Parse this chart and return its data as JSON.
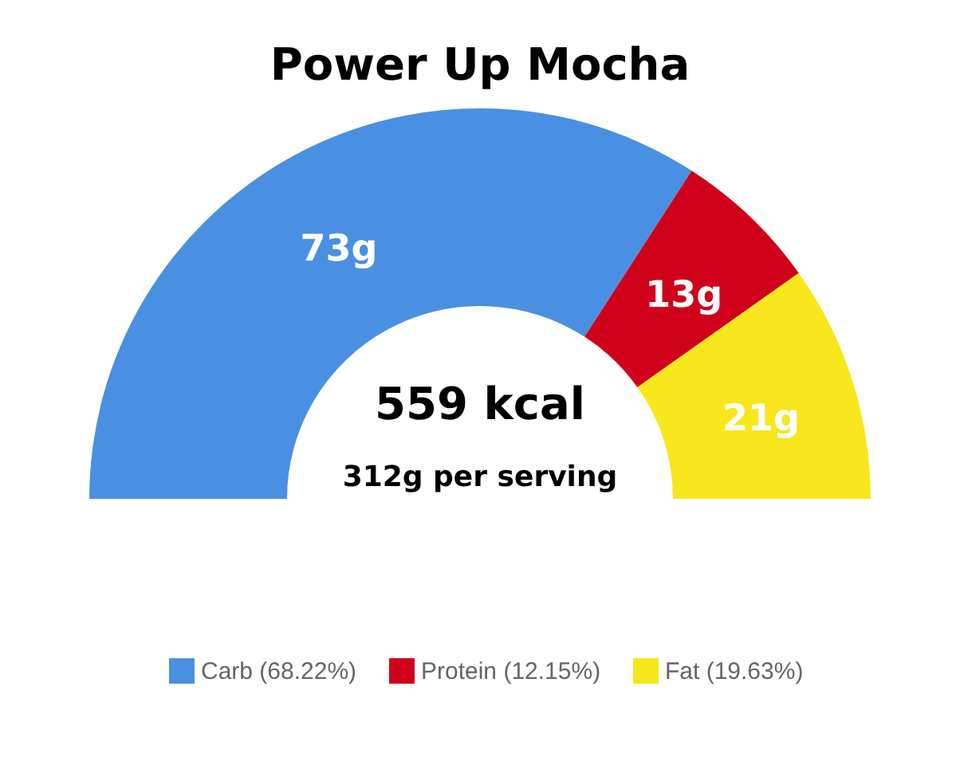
{
  "chart_data": {
    "type": "donut",
    "title": "Power Up Mocha",
    "categories": [
      "Carb (68.22%)",
      "Protein (12.15%)",
      "Fat (19.63%)"
    ],
    "values": [
      73,
      13,
      21
    ],
    "colors": [
      "#4a90e2",
      "#d0021b",
      "#f8e71c"
    ],
    "value_labels": [
      "73g",
      "13g",
      "21g"
    ],
    "annotations": [
      "559 kcal",
      "312g per serving"
    ],
    "legend": "bottom"
  }
}
